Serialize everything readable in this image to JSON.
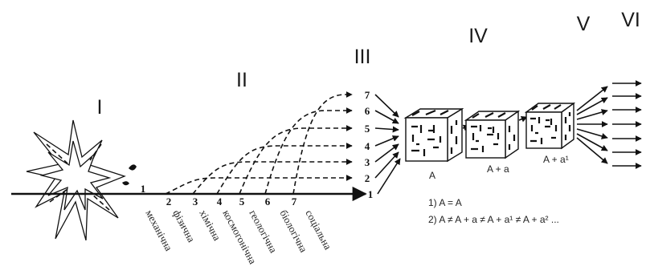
{
  "stages": [
    "I",
    "II",
    "III",
    "IV",
    "V",
    "VI"
  ],
  "axis_numbers": [
    "1",
    "2",
    "3",
    "4",
    "5",
    "6",
    "7"
  ],
  "forms": [
    "механічна",
    "фізична",
    "хімічна",
    "космогонічна",
    "геологічна",
    "біологічна",
    "соціальна"
  ],
  "level_numbers": [
    "1",
    "2",
    "3",
    "4",
    "5",
    "6",
    "7"
  ],
  "boxes": [
    "A",
    "A + a",
    "A + a¹"
  ],
  "formulas": [
    "1) A = A",
    "2) A ≠ A + a ≠ A + a¹ ≠ A + a² ..."
  ]
}
